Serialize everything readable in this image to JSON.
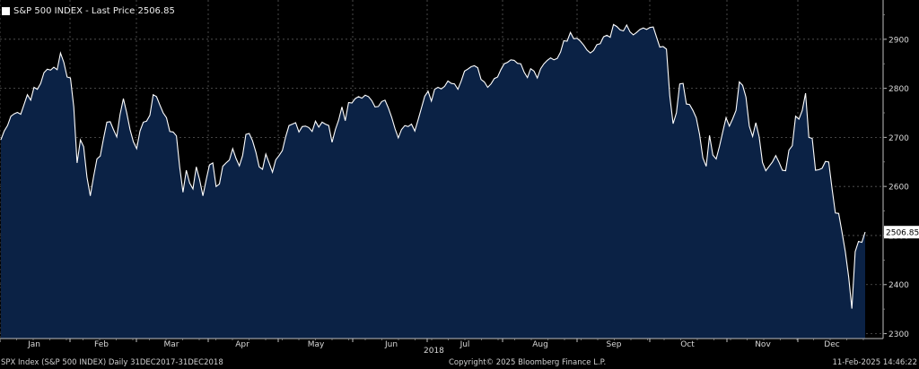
{
  "legend": {
    "label": "S&P 500 INDEX - Last Price 2506.85",
    "color": "#ffffff"
  },
  "footer": {
    "left": "SPX Index (S&P 500 INDEX)  Daily 31DEC2017-31DEC2018",
    "center": "Copyright© 2025 Bloomberg Finance L.P.",
    "right": "11-Feb-2025 14:46:22"
  },
  "chart_data": {
    "type": "area",
    "title": "",
    "series": [
      {
        "name": "S&P 500 INDEX - Last Price 2506.85",
        "color": "#ffffff",
        "fill": "#0b2245",
        "values": [
          2695,
          2713,
          2724,
          2743,
          2748,
          2751,
          2747,
          2767,
          2787,
          2776,
          2802,
          2798,
          2810,
          2832,
          2839,
          2837,
          2843,
          2838,
          2872,
          2853,
          2823,
          2821,
          2762,
          2648,
          2695,
          2681,
          2619,
          2581,
          2620,
          2656,
          2662,
          2698,
          2731,
          2732,
          2716,
          2701,
          2747,
          2779,
          2750,
          2716,
          2691,
          2677,
          2713,
          2731,
          2733,
          2745,
          2787,
          2783,
          2766,
          2750,
          2740,
          2712,
          2711,
          2703,
          2640,
          2588,
          2633,
          2607,
          2595,
          2640,
          2614,
          2581,
          2614,
          2644,
          2648,
          2600,
          2605,
          2641,
          2648,
          2654,
          2677,
          2657,
          2642,
          2663,
          2706,
          2708,
          2693,
          2670,
          2640,
          2635,
          2666,
          2648,
          2629,
          2654,
          2663,
          2673,
          2701,
          2724,
          2727,
          2730,
          2711,
          2722,
          2723,
          2720,
          2712,
          2733,
          2721,
          2731,
          2727,
          2724,
          2690,
          2716,
          2735,
          2762,
          2734,
          2771,
          2770,
          2779,
          2783,
          2780,
          2786,
          2783,
          2775,
          2762,
          2763,
          2773,
          2776,
          2760,
          2741,
          2718,
          2699,
          2716,
          2724,
          2722,
          2727,
          2713,
          2736,
          2760,
          2784,
          2794,
          2774,
          2798,
          2802,
          2799,
          2804,
          2815,
          2810,
          2809,
          2798,
          2815,
          2835,
          2839,
          2844,
          2846,
          2842,
          2818,
          2813,
          2802,
          2809,
          2820,
          2823,
          2838,
          2850,
          2853,
          2858,
          2857,
          2851,
          2850,
          2833,
          2822,
          2840,
          2835,
          2821,
          2840,
          2850,
          2857,
          2862,
          2858,
          2861,
          2874,
          2897,
          2896,
          2914,
          2901,
          2902,
          2896,
          2888,
          2878,
          2872,
          2877,
          2889,
          2891,
          2905,
          2908,
          2904,
          2930,
          2926,
          2919,
          2917,
          2929,
          2915,
          2909,
          2914,
          2920,
          2923,
          2920,
          2924,
          2925,
          2904,
          2884,
          2885,
          2880,
          2785,
          2728,
          2750,
          2809,
          2810,
          2768,
          2767,
          2755,
          2740,
          2706,
          2658,
          2641,
          2704,
          2664,
          2656,
          2682,
          2711,
          2740,
          2723,
          2738,
          2755,
          2813,
          2806,
          2782,
          2723,
          2702,
          2730,
          2701,
          2649,
          2632,
          2641,
          2650,
          2663,
          2649,
          2633,
          2632,
          2674,
          2683,
          2743,
          2737,
          2755,
          2790,
          2700,
          2698,
          2633,
          2634,
          2637,
          2651,
          2650,
          2596,
          2546,
          2545,
          2507,
          2467,
          2416,
          2351,
          2467,
          2488,
          2486,
          2507
        ]
      }
    ],
    "x_axis": {
      "ticks": [
        "Jan",
        "Feb",
        "Mar",
        "Apr",
        "May",
        "Jun",
        "Jul",
        "Aug",
        "Sep",
        "Oct",
        "Nov",
        "Dec"
      ],
      "year_label": "2018"
    },
    "y_axis": {
      "ticks": [
        2300,
        2400,
        2500,
        2600,
        2700,
        2800,
        2900
      ],
      "range": [
        2290,
        2980
      ],
      "side": "right",
      "last_value_label": "2506.85",
      "last_value": 2506.85
    },
    "grid": true,
    "legend_placement": "top-left"
  }
}
